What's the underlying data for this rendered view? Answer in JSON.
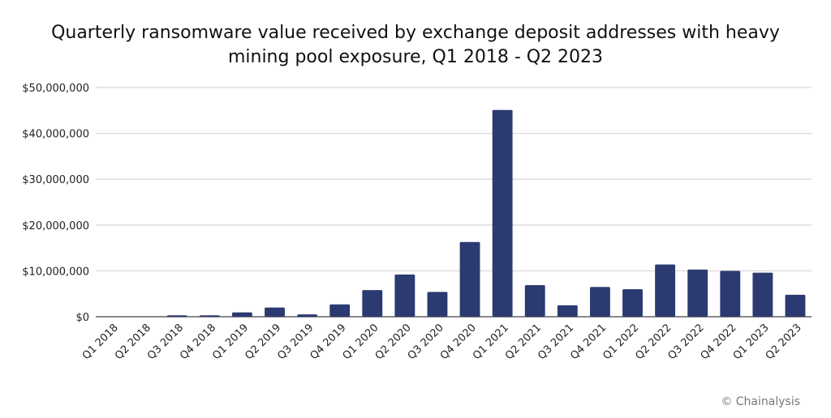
{
  "chart_data": {
    "type": "bar",
    "title_lines": [
      "Quarterly ransomware value received by exchange deposit addresses with heavy",
      "mining pool exposure, Q1 2018 - Q2 2023"
    ],
    "xlabel": "",
    "ylabel": "",
    "ylim": [
      0,
      50000000
    ],
    "yticks": [
      0,
      10000000,
      20000000,
      30000000,
      40000000,
      50000000
    ],
    "ytick_labels": [
      "$0",
      "$10,000,000",
      "$20,000,000",
      "$30,000,000",
      "$40,000,000",
      "$50,000,000"
    ],
    "grid": true,
    "categories": [
      "Q1 2018",
      "Q2 2018",
      "Q3 2018",
      "Q4 2018",
      "Q1 2019",
      "Q2 2019",
      "Q3 2019",
      "Q4 2019",
      "Q1 2020",
      "Q2 2020",
      "Q3 2020",
      "Q4 2020",
      "Q1 2021",
      "Q2 2021",
      "Q3 2021",
      "Q4 2021",
      "Q1 2022",
      "Q2 2022",
      "Q3 2022",
      "Q4 2022",
      "Q1 2023",
      "Q2 2023"
    ],
    "values": [
      0,
      0,
      300000,
      300000,
      950000,
      2000000,
      500000,
      2700000,
      5800000,
      9200000,
      5400000,
      16300000,
      45100000,
      6900000,
      2500000,
      6500000,
      6000000,
      11400000,
      10300000,
      10000000,
      9600000,
      4800000
    ],
    "bar_color": "#2b3a70",
    "credit": "© Chainalysis"
  }
}
